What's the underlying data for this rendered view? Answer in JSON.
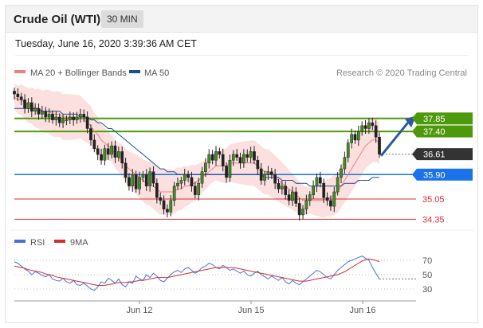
{
  "header": {
    "title": "Crude Oil (WTI)",
    "timeframe": "30 MIN"
  },
  "timestamp": "Tuesday, June 16, 2020 3:39:36 AM CET",
  "legend": {
    "items": [
      {
        "label": "MA 20 + Bollinger Bands",
        "color": "#f08080"
      },
      {
        "label": "MA 50",
        "color": "#1f4e8c"
      }
    ]
  },
  "credit": "Research © 2020 Trading Central",
  "chart_data": [
    {
      "type": "line",
      "title": "",
      "x_ticks": [
        "Jun 12",
        "Jun 15",
        "Jun 16"
      ],
      "levels": [
        {
          "value": 37.85,
          "label": "37.85",
          "kind": "resistance",
          "color": "#4c9a0c"
        },
        {
          "value": 37.4,
          "label": "37.40",
          "kind": "resistance",
          "color": "#4c9a0c"
        },
        {
          "value": 36.61,
          "label": "36.61",
          "kind": "last-price",
          "color": "#333333"
        },
        {
          "value": 35.9,
          "label": "35.90",
          "kind": "pivot",
          "color": "#1a73e8"
        },
        {
          "value": 35.05,
          "label": "35.05",
          "kind": "support",
          "color": "#d32f2f"
        },
        {
          "value": 34.35,
          "label": "34.35",
          "kind": "support",
          "color": "#d32f2f"
        }
      ],
      "ylim": [
        34.0,
        39.2
      ],
      "series": [
        {
          "name": "Price",
          "values": [
            38.7,
            38.6,
            38.5,
            38.2,
            38.4,
            38.1,
            38.2,
            38.0,
            38.1,
            37.9,
            38.0,
            37.8,
            37.9,
            37.7,
            37.8,
            37.8,
            37.9,
            37.8,
            37.9,
            38.0,
            37.9,
            37.5,
            37.1,
            36.8,
            36.6,
            36.4,
            36.8,
            36.6,
            36.9,
            36.5,
            36.7,
            36.3,
            35.8,
            35.5,
            35.9,
            35.4,
            35.8,
            35.9,
            35.5,
            36.0,
            35.6,
            35.1,
            35.0,
            34.7,
            34.6,
            35.0,
            35.5,
            35.6,
            35.7,
            35.9,
            35.8,
            35.5,
            35.2,
            35.6,
            36.0,
            36.3,
            36.6,
            36.4,
            36.7,
            36.6,
            36.2,
            35.8,
            36.4,
            36.6,
            36.5,
            36.3,
            36.6,
            36.5,
            36.7,
            36.4,
            36.1,
            35.7,
            35.9,
            36.0,
            35.9,
            35.6,
            35.4,
            35.5,
            35.2,
            35.0,
            35.3,
            34.9,
            34.5,
            34.7,
            35.0,
            35.2,
            35.5,
            35.8,
            35.6,
            35.1,
            35.0,
            34.8,
            35.3,
            35.8,
            36.1,
            36.5,
            37.0,
            37.3,
            37.1,
            37.4,
            37.6,
            37.5,
            37.7,
            37.6,
            37.2,
            36.61
          ]
        },
        {
          "name": "MA 20",
          "values": [
            38.6,
            38.5,
            38.5,
            38.4,
            38.3,
            38.3,
            38.2,
            38.2,
            38.1,
            38.1,
            38.1,
            38.0,
            38.0,
            38.0,
            37.9,
            37.9,
            37.9,
            37.9,
            37.9,
            37.9,
            37.8,
            37.7,
            37.6,
            37.4,
            37.3,
            37.1,
            37.0,
            36.9,
            36.8,
            36.6,
            36.5,
            36.4,
            36.2,
            36.1,
            36.0,
            35.9,
            35.8,
            35.7,
            35.6,
            35.6,
            35.5,
            35.4,
            35.3,
            35.3,
            35.3,
            35.3,
            35.3,
            35.4,
            35.4,
            35.5,
            35.5,
            35.6,
            35.6,
            35.7,
            35.8,
            35.9,
            36.0,
            36.1,
            36.2,
            36.2,
            36.2,
            36.2,
            36.3,
            36.3,
            36.3,
            36.3,
            36.3,
            36.3,
            36.3,
            36.3,
            36.2,
            36.1,
            36.0,
            36.0,
            35.9,
            35.8,
            35.7,
            35.6,
            35.5,
            35.4,
            35.3,
            35.2,
            35.1,
            35.0,
            35.0,
            35.0,
            35.0,
            35.0,
            35.0,
            35.0,
            35.1,
            35.1,
            35.2,
            35.3,
            35.5,
            35.7,
            35.9,
            36.1,
            36.3,
            36.5,
            36.7,
            36.9,
            37.0,
            37.1,
            37.1,
            37.0
          ]
        },
        {
          "name": "MA 50",
          "values": [
            38.2,
            38.2,
            38.2,
            38.2,
            38.2,
            38.2,
            38.2,
            38.2,
            38.1,
            38.1,
            38.1,
            38.1,
            38.1,
            38.1,
            38.0,
            38.0,
            38.0,
            38.0,
            38.0,
            37.9,
            37.9,
            37.9,
            37.8,
            37.8,
            37.7,
            37.7,
            37.6,
            37.5,
            37.5,
            37.4,
            37.3,
            37.2,
            37.1,
            37.0,
            36.9,
            36.8,
            36.7,
            36.6,
            36.5,
            36.4,
            36.3,
            36.2,
            36.1,
            36.1,
            36.0,
            36.0,
            36.0,
            35.9,
            35.9,
            35.9,
            35.9,
            35.9,
            35.9,
            35.9,
            35.9,
            35.9,
            35.9,
            35.9,
            35.9,
            35.9,
            35.9,
            35.9,
            35.9,
            35.9,
            35.9,
            35.9,
            35.9,
            35.9,
            35.9,
            35.9,
            35.9,
            35.9,
            35.8,
            35.8,
            35.8,
            35.8,
            35.8,
            35.7,
            35.7,
            35.7,
            35.7,
            35.6,
            35.6,
            35.6,
            35.6,
            35.5,
            35.5,
            35.5,
            35.5,
            35.5,
            35.5,
            35.5,
            35.5,
            35.5,
            35.5,
            35.6,
            35.6,
            35.6,
            35.6,
            35.7,
            35.7,
            35.7,
            35.7,
            35.8,
            35.8,
            35.8
          ]
        }
      ]
    },
    {
      "type": "line",
      "title": "",
      "legend": [
        {
          "label": "RSI",
          "color": "#4a6fdc"
        },
        {
          "label": "9MA",
          "color": "#d32f2f"
        }
      ],
      "y_ticks": [
        30,
        50,
        70
      ],
      "ylim": [
        20,
        80
      ],
      "series": [
        {
          "name": "RSI",
          "values": [
            68,
            66,
            62,
            58,
            55,
            50,
            54,
            52,
            49,
            47,
            50,
            44,
            42,
            41,
            45,
            40,
            38,
            42,
            36,
            35,
            38,
            34,
            30,
            28,
            33,
            40,
            38,
            45,
            42,
            38,
            44,
            36,
            33,
            40,
            38,
            48,
            44,
            42,
            50,
            46,
            52,
            48,
            42,
            40,
            45,
            50,
            54,
            56,
            53,
            58,
            60,
            56,
            52,
            55,
            60,
            62,
            66,
            64,
            60,
            58,
            63,
            60,
            56,
            58,
            55,
            52,
            55,
            50,
            48,
            52,
            55,
            50,
            47,
            44,
            48,
            45,
            42,
            46,
            40,
            37,
            42,
            38,
            36,
            40,
            44,
            48,
            52,
            56,
            54,
            50,
            46,
            44,
            50,
            56,
            60,
            64,
            68,
            70,
            72,
            74,
            76,
            73,
            70,
            60,
            52,
            44
          ]
        },
        {
          "name": "9MA",
          "values": [
            62,
            61,
            60,
            59,
            57,
            56,
            55,
            54,
            53,
            51,
            50,
            49,
            47,
            46,
            45,
            44,
            43,
            42,
            41,
            40,
            39,
            38,
            37,
            36,
            35,
            35,
            35,
            36,
            37,
            38,
            39,
            39,
            39,
            40,
            40,
            41,
            42,
            42,
            43,
            44,
            45,
            46,
            46,
            46,
            46,
            47,
            48,
            49,
            50,
            51,
            52,
            53,
            54,
            55,
            56,
            57,
            58,
            59,
            60,
            60,
            60,
            60,
            60,
            60,
            59,
            58,
            57,
            56,
            55,
            54,
            53,
            52,
            51,
            50,
            49,
            48,
            47,
            46,
            45,
            44,
            43,
            42,
            41,
            41,
            41,
            42,
            43,
            44,
            45,
            46,
            47,
            48,
            49,
            50,
            52,
            54,
            57,
            60,
            63,
            66,
            69,
            71,
            72,
            71,
            70,
            68
          ]
        }
      ]
    }
  ]
}
